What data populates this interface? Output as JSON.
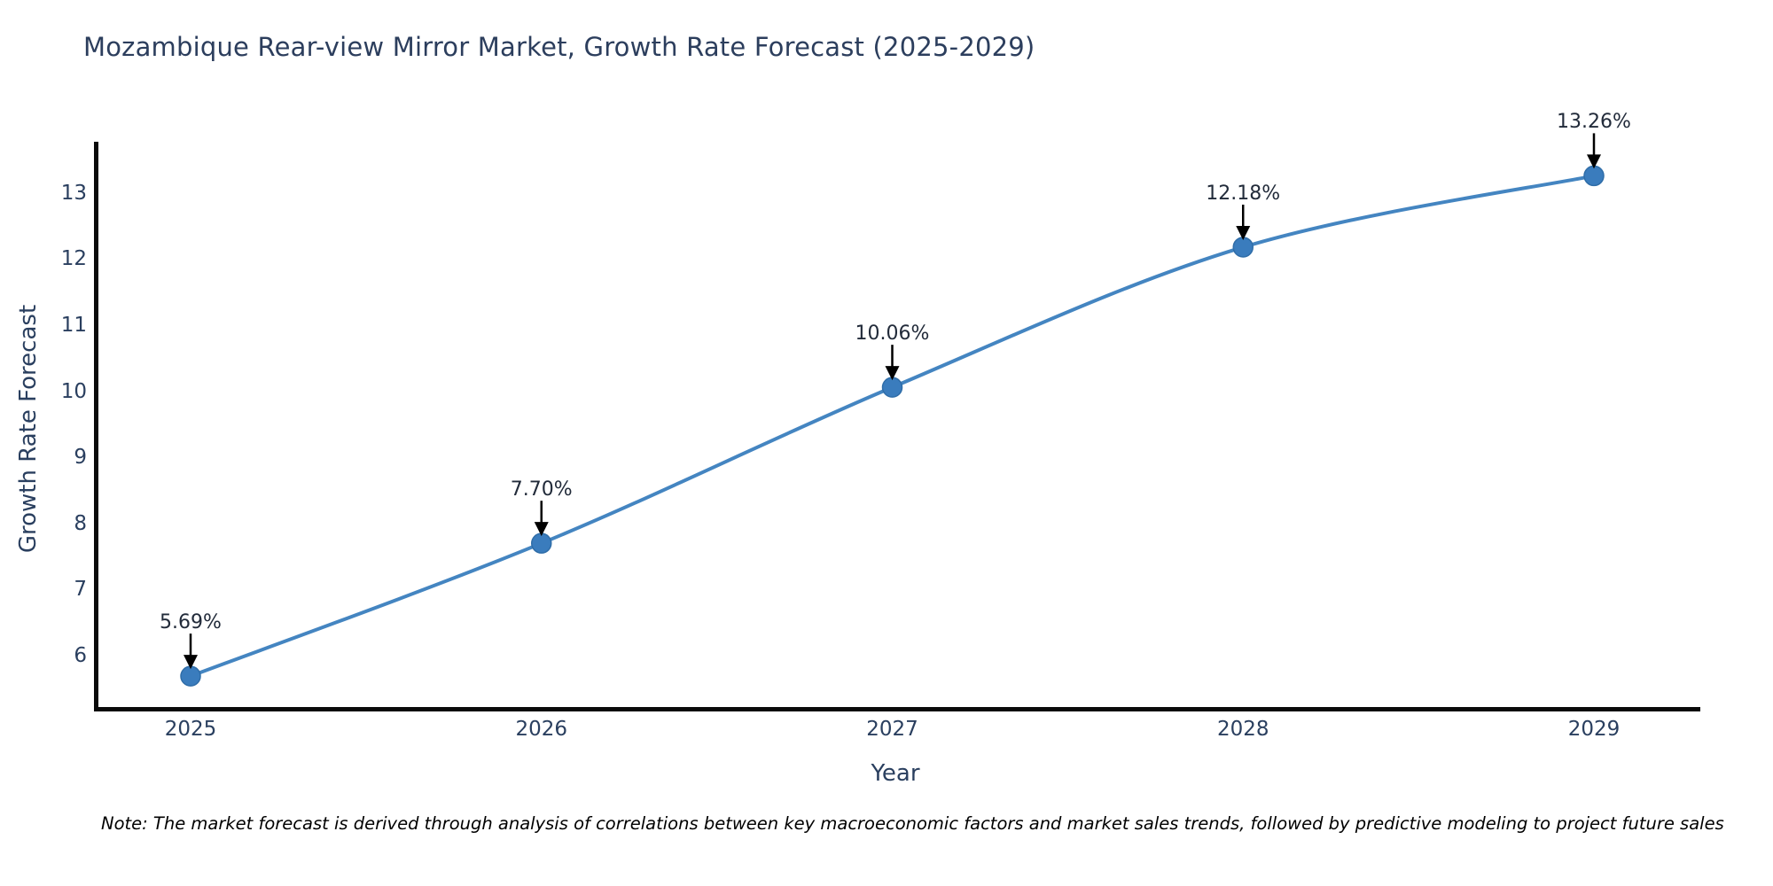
{
  "title": "Mozambique Rear-view Mirror Market, Growth Rate Forecast (2025-2029)",
  "note": "Note: The market forecast is derived through analysis of correlations between key macroeconomic factors and market sales trends, followed by predictive modeling to project future sales",
  "colors": {
    "line": "#4485c1",
    "marker_fill": "#3a7cbd",
    "marker_edge": "#2f6da8",
    "axis_spine": "#0a0a0a",
    "tick_text": "#2a3f5f",
    "annotation_text": "#222b3a",
    "arrow": "#000000",
    "background": "#ffffff"
  },
  "chart_data": {
    "type": "line",
    "title": "Mozambique Rear-view Mirror Market, Growth Rate Forecast (2025-2029)",
    "xlabel": "Year",
    "ylabel": "Growth Rate Forecast",
    "categories": [
      "2025",
      "2026",
      "2027",
      "2028",
      "2029"
    ],
    "values": [
      5.69,
      7.7,
      10.06,
      12.18,
      13.26
    ],
    "point_labels": [
      "5.69%",
      "7.70%",
      "10.06%",
      "12.18%",
      "13.26%"
    ],
    "y_ticks": [
      6,
      7,
      8,
      9,
      10,
      11,
      12,
      13
    ],
    "ylim": [
      5.2,
      13.77
    ],
    "grid": false,
    "legend": false,
    "line_shape": "spline",
    "point_annotations_with_arrows": true
  }
}
